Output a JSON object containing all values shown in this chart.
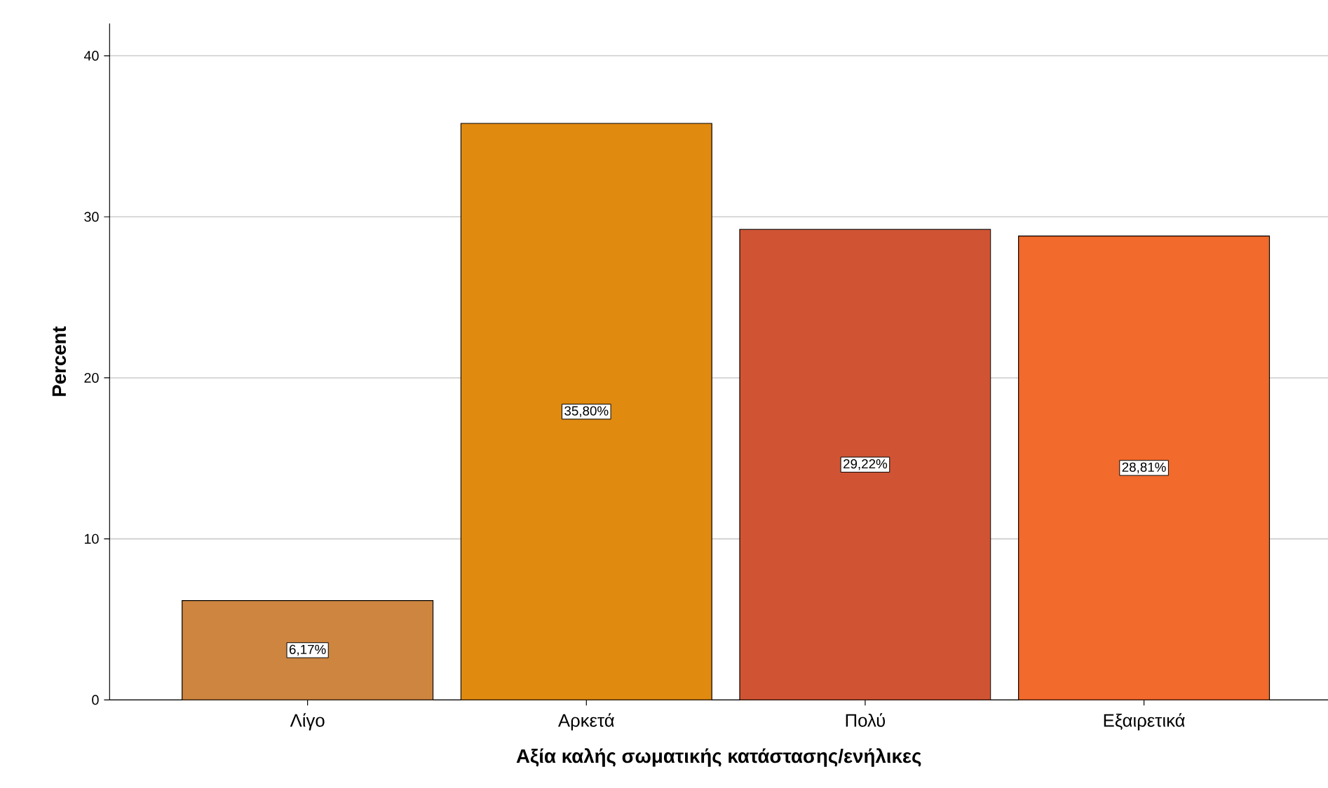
{
  "chart_data": {
    "type": "bar",
    "xlabel": "Αξία καλής σωματικής κατάστασης/ενήλικες",
    "ylabel": "Percent",
    "categories": [
      "Λίγο",
      "Αρκετά",
      "Πολύ",
      "Εξαιρετικά"
    ],
    "values": [
      6.17,
      35.8,
      29.22,
      28.81
    ],
    "colors": [
      "#cd853f",
      "#e08a10",
      "#d05434",
      "#f26a2c"
    ],
    "value_labels": [
      "6,17%",
      "35,80%",
      "29,22%",
      "28,81%"
    ],
    "ylim": [
      0,
      42
    ],
    "yticks": [
      0,
      10,
      20,
      30,
      40
    ],
    "grid": "y"
  }
}
